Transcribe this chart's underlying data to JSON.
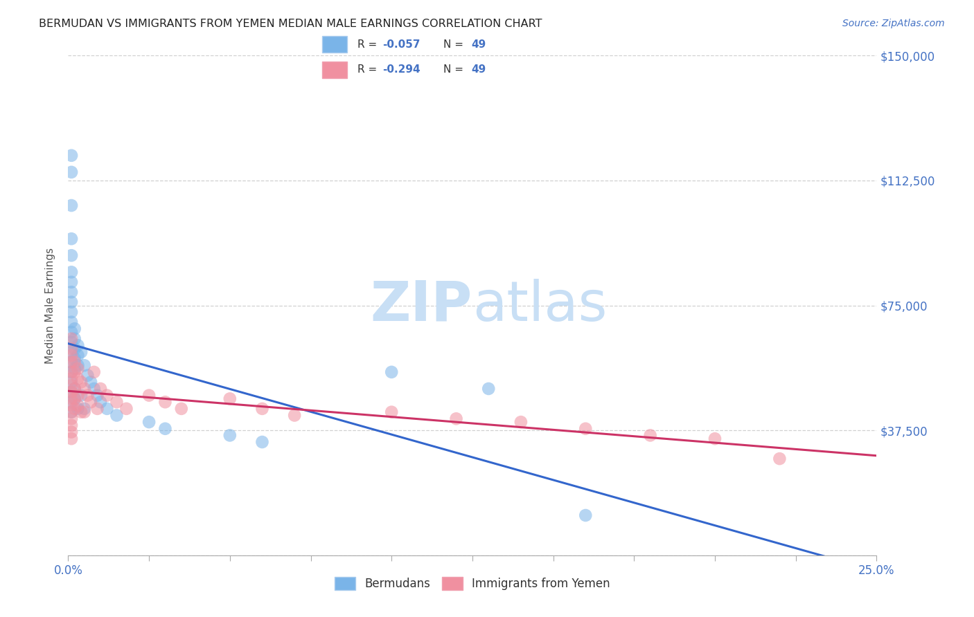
{
  "title": "BERMUDAN VS IMMIGRANTS FROM YEMEN MEDIAN MALE EARNINGS CORRELATION CHART",
  "source": "Source: ZipAtlas.com",
  "ylabel": "Median Male Earnings",
  "yticks": [
    0,
    37500,
    75000,
    112500,
    150000
  ],
  "ytick_labels": [
    "",
    "$37,500",
    "$75,000",
    "$112,500",
    "$150,000"
  ],
  "xlim": [
    0.0,
    0.25
  ],
  "ylim": [
    0,
    150000
  ],
  "r_bermudan": "-0.057",
  "r_yemen": "-0.294",
  "n_bermudan": "49",
  "n_yemen": "49",
  "bermudans_x": [
    0.001,
    0.001,
    0.001,
    0.001,
    0.001,
    0.001,
    0.001,
    0.001,
    0.001,
    0.001,
    0.001,
    0.001,
    0.001,
    0.001,
    0.001,
    0.001,
    0.001,
    0.001,
    0.001,
    0.001,
    0.002,
    0.002,
    0.002,
    0.002,
    0.002,
    0.002,
    0.002,
    0.003,
    0.003,
    0.003,
    0.003,
    0.004,
    0.004,
    0.005,
    0.005,
    0.006,
    0.007,
    0.008,
    0.009,
    0.01,
    0.012,
    0.015,
    0.025,
    0.03,
    0.05,
    0.06,
    0.1,
    0.13,
    0.16
  ],
  "bermudans_y": [
    120000,
    115000,
    105000,
    95000,
    90000,
    85000,
    82000,
    79000,
    76000,
    73000,
    70000,
    67000,
    64000,
    61000,
    58000,
    55000,
    52000,
    49000,
    46000,
    43000,
    68000,
    65000,
    62000,
    59000,
    56000,
    50000,
    47000,
    63000,
    60000,
    57000,
    44000,
    61000,
    48000,
    57000,
    44000,
    54000,
    52000,
    50000,
    48000,
    46000,
    44000,
    42000,
    40000,
    38000,
    36000,
    34000,
    55000,
    50000,
    12000
  ],
  "yemen_x": [
    0.001,
    0.001,
    0.001,
    0.001,
    0.001,
    0.001,
    0.001,
    0.001,
    0.001,
    0.001,
    0.001,
    0.001,
    0.001,
    0.001,
    0.001,
    0.002,
    0.002,
    0.002,
    0.002,
    0.002,
    0.003,
    0.003,
    0.003,
    0.003,
    0.004,
    0.004,
    0.005,
    0.005,
    0.006,
    0.007,
    0.008,
    0.009,
    0.01,
    0.012,
    0.015,
    0.018,
    0.025,
    0.03,
    0.035,
    0.05,
    0.06,
    0.07,
    0.1,
    0.12,
    0.14,
    0.16,
    0.18,
    0.2,
    0.22
  ],
  "yemen_y": [
    65000,
    62000,
    60000,
    58000,
    55000,
    53000,
    51000,
    49000,
    47000,
    45000,
    43000,
    41000,
    39000,
    37000,
    35000,
    58000,
    55000,
    50000,
    47000,
    44000,
    56000,
    53000,
    48000,
    45000,
    52000,
    43000,
    50000,
    43000,
    48000,
    46000,
    55000,
    44000,
    50000,
    48000,
    46000,
    44000,
    48000,
    46000,
    44000,
    47000,
    44000,
    42000,
    43000,
    41000,
    40000,
    38000,
    36000,
    35000,
    29000
  ],
  "bermudan_color": "#7ab4e8",
  "yemen_color": "#f090a0",
  "bermudan_line_color": "#3366cc",
  "yemen_line_color": "#cc3366",
  "watermark_zip": "ZIP",
  "watermark_atlas": "atlas",
  "watermark_color": "#c8dff5",
  "background_color": "#ffffff",
  "grid_color": "#d0d0d0",
  "title_color": "#222222",
  "source_color": "#4472c4",
  "tick_label_color": "#555555"
}
